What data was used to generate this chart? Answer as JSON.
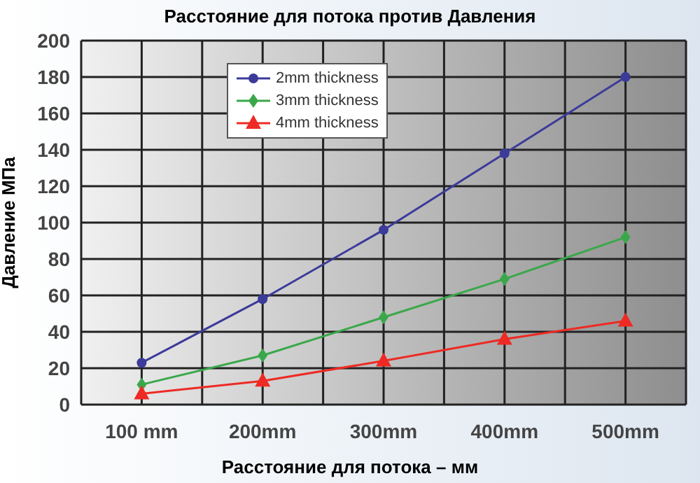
{
  "chart_data": {
    "type": "line",
    "title": "Расстояние для потока против Давления",
    "xlabel": "Расстояние для потока – мм",
    "ylabel": "Давление МПа",
    "categories": [
      "100 mm",
      "200mm",
      "300mm",
      "400mm",
      "500mm"
    ],
    "series": [
      {
        "name": "2mm thickness",
        "color": "#3b3b9a",
        "marker": "circle",
        "values": [
          23,
          58,
          96,
          138,
          180
        ]
      },
      {
        "name": "3mm thickness",
        "color": "#3aa84a",
        "marker": "diamond",
        "values": [
          11,
          27,
          48,
          69,
          92
        ]
      },
      {
        "name": "4mm thickness",
        "color": "#ee2a24",
        "marker": "triangle",
        "values": [
          6,
          13,
          24,
          36,
          46
        ]
      }
    ],
    "ylim": [
      0,
      200
    ],
    "yticks": [
      0,
      20,
      40,
      60,
      80,
      100,
      120,
      140,
      160,
      180,
      200
    ],
    "grid": true,
    "legend": "top left",
    "line_style": "solid"
  }
}
